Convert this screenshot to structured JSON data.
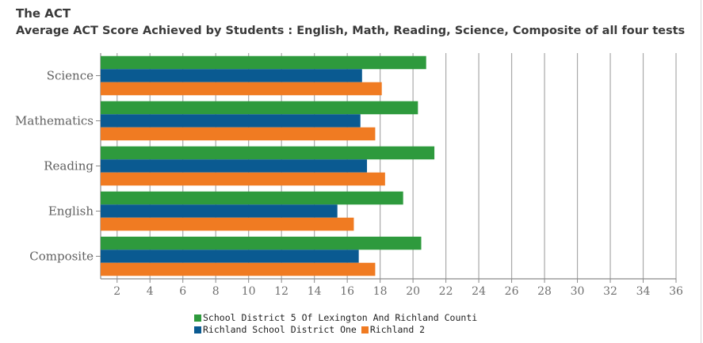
{
  "header": {
    "title": "The ACT",
    "subtitle": "Average ACT Score Achieved by Students : English, Math, Reading, Science, Composite of all four tests"
  },
  "chart_data": {
    "type": "bar",
    "orientation": "horizontal",
    "categories": [
      "Science",
      "Mathematics",
      "Reading",
      "English",
      "Composite"
    ],
    "series": [
      {
        "name": "School District 5 Of Lexington And Richland Counti",
        "color": "#2e9a3d",
        "values": [
          20.8,
          20.3,
          21.3,
          19.4,
          20.5
        ]
      },
      {
        "name": "Richland School District One",
        "color": "#0a5a91",
        "values": [
          16.9,
          16.8,
          17.2,
          15.4,
          16.7
        ]
      },
      {
        "name": "Richland 2",
        "color": "#f07b22",
        "values": [
          18.1,
          17.7,
          18.3,
          16.4,
          17.7
        ]
      }
    ],
    "xlim": [
      1,
      36
    ],
    "xticks": [
      2,
      4,
      6,
      8,
      10,
      12,
      14,
      16,
      18,
      20,
      22,
      24,
      26,
      28,
      30,
      32,
      34,
      36
    ],
    "grid": true,
    "legend_position": "bottom"
  }
}
